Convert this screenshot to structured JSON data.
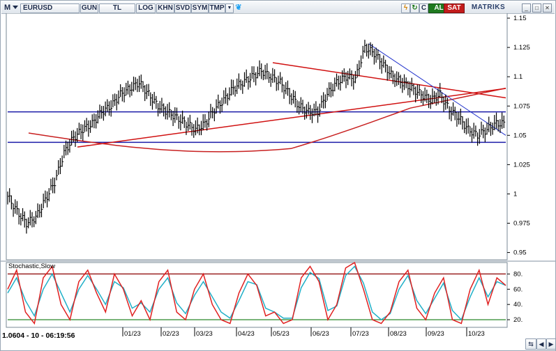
{
  "toolbar": {
    "logo": "M",
    "symbol": "EURUSD",
    "buttons": [
      "GUN",
      "TL",
      "LOG",
      "KHN",
      "SVD",
      "SYM",
      "TMP"
    ],
    "buy_label": "AL",
    "sell_label": "SAT",
    "brand": "MATRIKS",
    "icons": [
      "lightning-icon",
      "refresh-icon",
      "c-icon",
      "dropdown-icon",
      "twitter-icon",
      "minimize-icon",
      "maximize-icon",
      "close-icon"
    ]
  },
  "status_bar": {
    "text": "1.0604 - 10 - 06:19:56"
  },
  "chart_data": [
    {
      "type": "line",
      "instrument": "EURUSD",
      "y_ticks": [
        "1.15",
        "1.125",
        "1.1",
        "1.075",
        "1.05",
        "1.025",
        "1",
        "0.975",
        "0.95"
      ],
      "ylim": [
        0.945,
        1.153
      ],
      "x_ticks": [
        "01/23",
        "02/23",
        "03/23",
        "04/23",
        "05/23",
        "06/23",
        "07/23",
        "08/23",
        "09/23",
        "10/23"
      ],
      "series": [
        {
          "values": [
            0.998,
            0.985,
            0.975,
            0.98,
            0.995,
            1.01,
            1.035,
            1.048,
            1.055,
            1.06,
            1.07,
            1.075,
            1.085,
            1.09,
            1.095,
            1.085,
            1.075,
            1.07,
            1.065,
            1.06,
            1.055,
            1.06,
            1.072,
            1.08,
            1.09,
            1.095,
            1.1,
            1.105,
            1.1,
            1.095,
            1.085,
            1.075,
            1.07,
            1.07,
            1.085,
            1.095,
            1.1,
            1.098,
            1.125,
            1.12,
            1.11,
            1.1,
            1.095,
            1.09,
            1.085,
            1.08,
            1.085,
            1.072,
            1.065,
            1.055,
            1.05,
            1.055,
            1.06,
            1.06
          ]
        },
        {
          "values": [
            1.07,
            1.07
          ]
        },
        {
          "values": [
            1.044,
            1.044
          ]
        },
        {
          "values": [
            1.112,
            1.082
          ]
        },
        {
          "values": [
            1.04,
            1.09
          ]
        },
        {
          "values": [
            1.128,
            1.05
          ]
        }
      ]
    },
    {
      "type": "line",
      "title": "Stochastic,Slow",
      "y_ticks": [
        "80.",
        "60.",
        "40.",
        "20."
      ],
      "ylim": [
        10,
        95
      ],
      "levels": [
        80,
        20
      ],
      "series": [
        {
          "values": [
            60,
            85,
            30,
            15,
            75,
            90,
            40,
            20,
            70,
            85,
            55,
            30,
            80,
            60,
            25,
            45,
            20,
            70,
            85,
            30,
            20,
            60,
            80,
            40,
            20,
            15,
            55,
            80,
            65,
            25,
            30,
            15,
            20,
            75,
            90,
            70,
            20,
            40,
            88,
            95,
            60,
            20,
            15,
            30,
            70,
            85,
            35,
            20,
            55,
            75,
            20,
            15,
            60,
            85,
            40,
            75,
            65
          ]
        },
        {
          "values": [
            55,
            75,
            45,
            25,
            60,
            80,
            55,
            30,
            60,
            78,
            60,
            40,
            70,
            62,
            35,
            42,
            30,
            60,
            75,
            42,
            28,
            52,
            70,
            50,
            30,
            22,
            45,
            70,
            66,
            35,
            30,
            22,
            22,
            62,
            82,
            74,
            32,
            38,
            78,
            90,
            68,
            30,
            20,
            28,
            60,
            78,
            45,
            28,
            48,
            68,
            32,
            20,
            50,
            75,
            50,
            70,
            65
          ]
        }
      ]
    }
  ],
  "colors": {
    "price_bars": "#000000",
    "horizontal_lines": "#1a1aa8",
    "trend_red": "#d01010",
    "trend_blue": "#2233cc",
    "ma_curve": "#c82020",
    "stoch_main": "#e02020",
    "stoch_signal": "#20b0c8",
    "level_80": "#8b0000",
    "level_20": "#107a10",
    "buy": "#1f7a1f",
    "sell": "#c21b1b"
  }
}
